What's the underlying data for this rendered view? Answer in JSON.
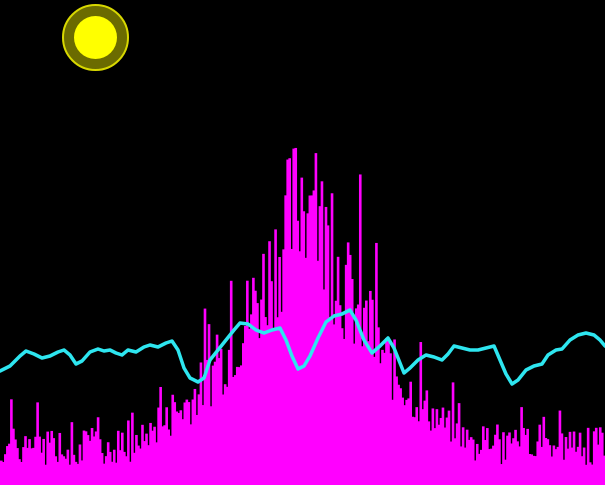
{
  "visualizer": {
    "background_color": "#000000",
    "bars_color": "#ff00ff",
    "wave_color": "#2ee6f0",
    "bar_count": 300
  },
  "sun_button": {
    "icon": "sun-icon",
    "ring_color": "#6b6b00",
    "core_color": "#ffff00"
  }
}
